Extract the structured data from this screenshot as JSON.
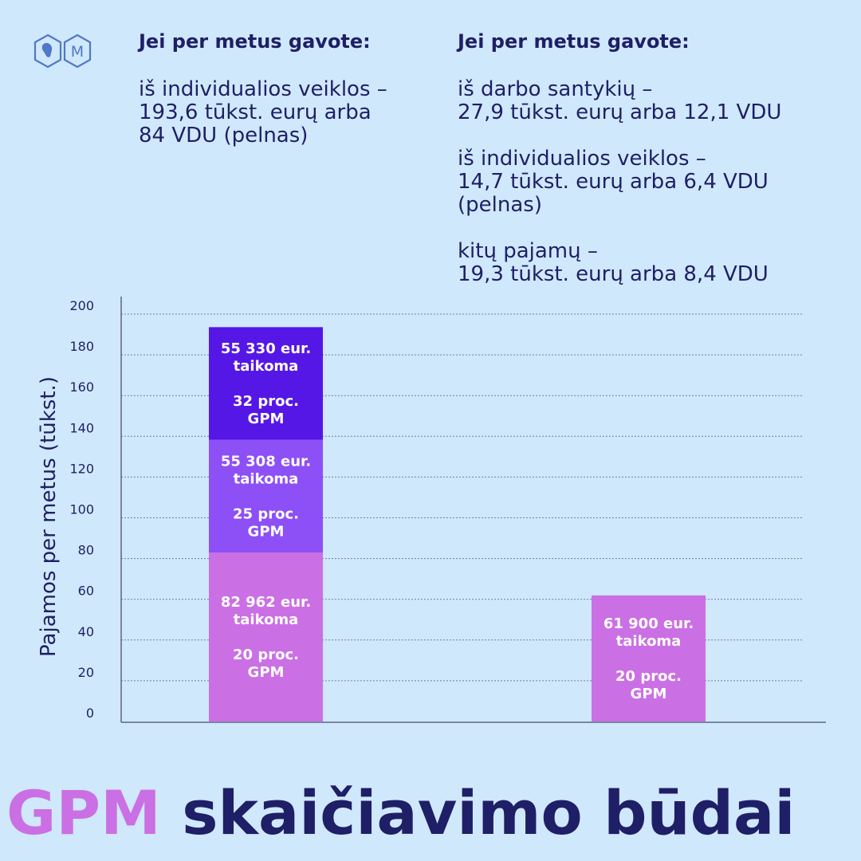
{
  "logo": {
    "icons": [
      "coat-of-arms-icon",
      "ministry-m-icon"
    ],
    "letter": "M"
  },
  "info_left": {
    "heading": "Jei per metus gavote:",
    "lines": [
      "iš individualios veiklos –\n193,6 tūkst. eurų arba\n84 VDU (pelnas)"
    ]
  },
  "info_right": {
    "heading": "Jei per metus gavote:",
    "lines": [
      "iš darbo santykių –\n27,9 tūkst. eurų arba 12,1 VDU",
      "iš individualios veiklos –\n14,7 tūkst. eurų arba 6,4 VDU\n(pelnas)",
      "kitų pajamų –\n19,3 tūkst. eurų arba 8,4 VDU"
    ]
  },
  "chart_data": {
    "type": "bar",
    "stacked": true,
    "ylabel": "Pajamos per metus (tūkst.)",
    "ylim": [
      0,
      200
    ],
    "yticks": [
      0,
      20,
      40,
      60,
      80,
      100,
      120,
      140,
      160,
      180,
      200
    ],
    "grid": true,
    "bars": [
      {
        "segments": [
          {
            "value": 82.962,
            "color": "#cb6fe4",
            "label_lines": [
              "82 962 eur.",
              "taikoma",
              "",
              "20 proc.",
              "GPM"
            ]
          },
          {
            "value": 55.308,
            "color": "#8d4ff6",
            "label_lines": [
              "55 308 eur.",
              "taikoma",
              "",
              "25 proc.",
              "GPM"
            ]
          },
          {
            "value": 55.33,
            "color": "#5517e6",
            "label_lines": [
              "55 330 eur.",
              "taikoma",
              "",
              "32 proc.",
              "GPM"
            ]
          }
        ]
      },
      {
        "segments": [
          {
            "value": 61.9,
            "color": "#cb6fe4",
            "label_lines": [
              "61 900 eur.",
              "taikoma",
              "",
              "20 proc.",
              "GPM"
            ]
          }
        ]
      }
    ]
  },
  "title": {
    "accent": "GPM",
    "main": "skaičiavimo būdai"
  },
  "colors": {
    "background": "#d0e8fb",
    "navy": "#1e1f66",
    "accent": "#cb6fe4"
  }
}
